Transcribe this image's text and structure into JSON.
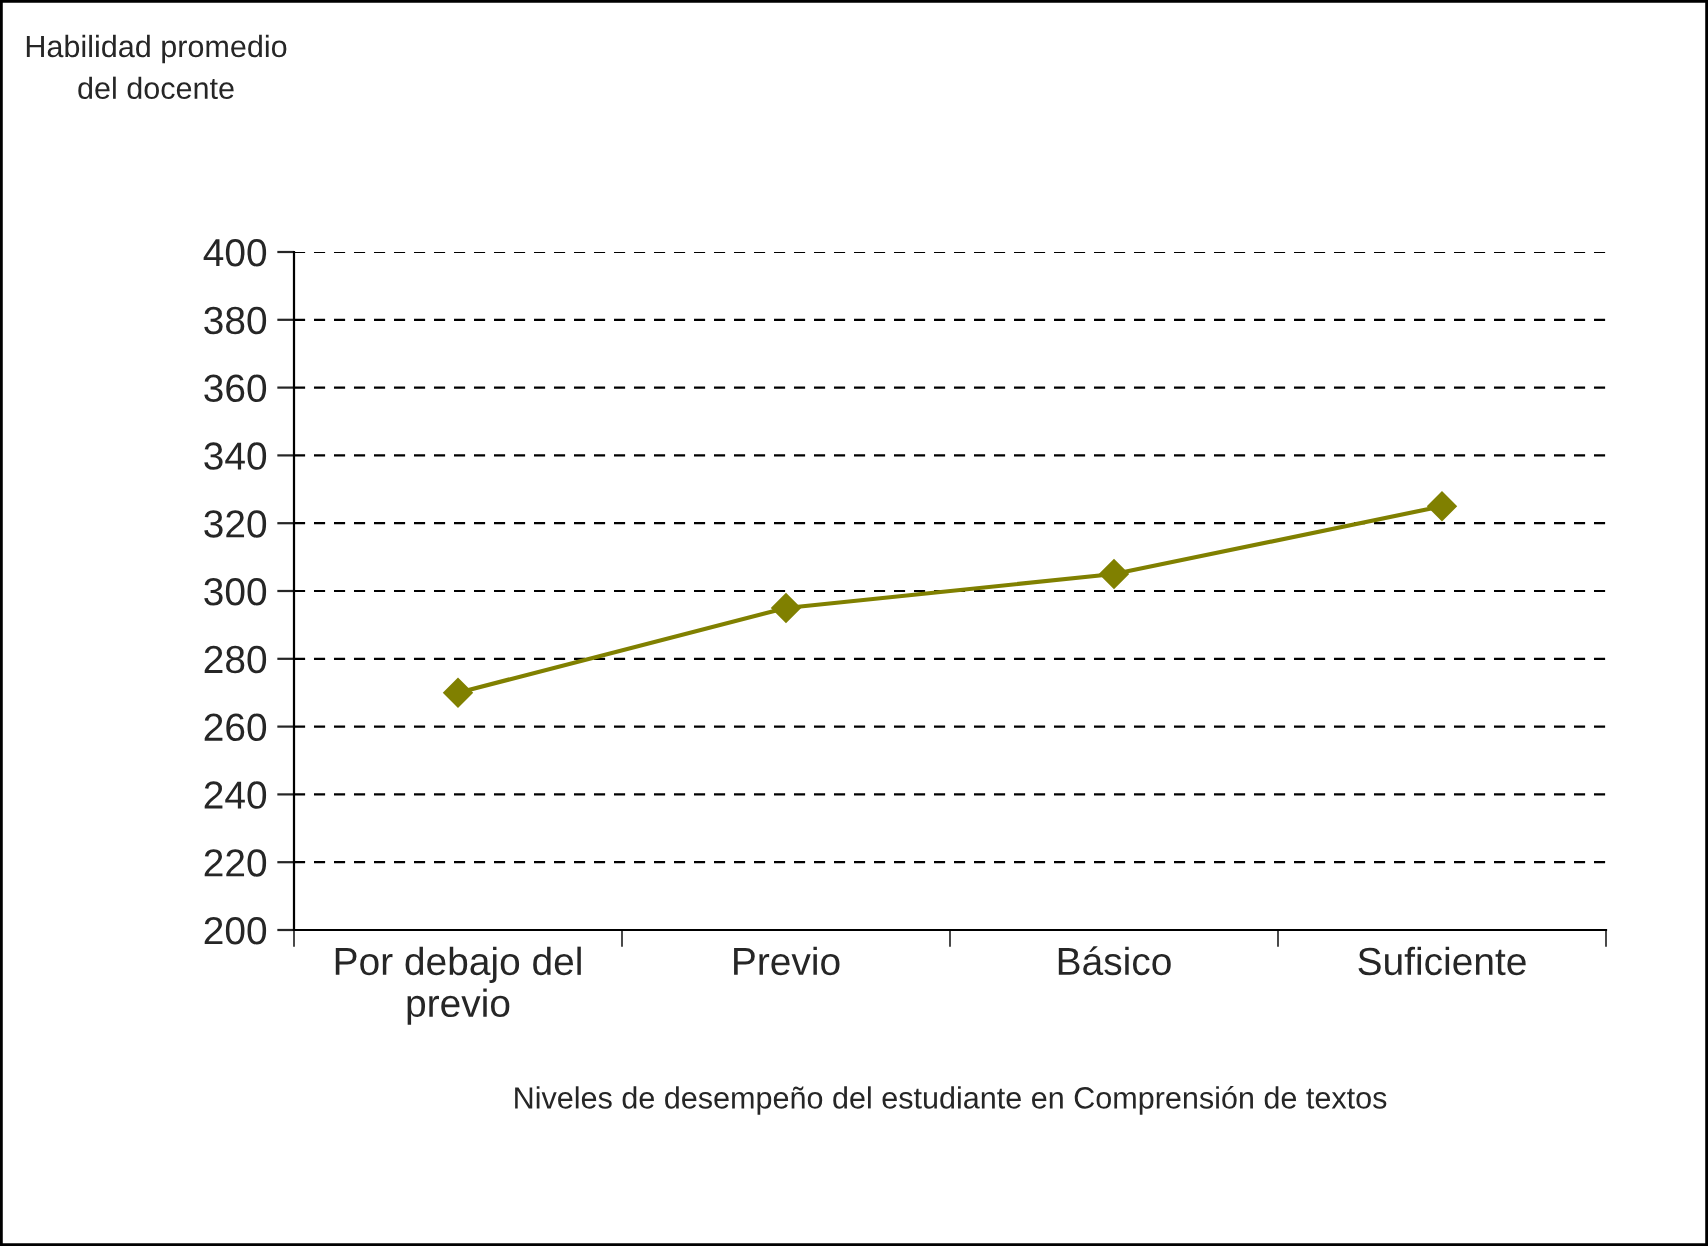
{
  "chart_data": {
    "type": "line",
    "ylabel": "Habilidad promedio\ndel docente",
    "xlabel": "Niveles de desempeño del estudiante en Comprensión de textos",
    "categories": [
      "Por debajo del\nprevio",
      "Previo",
      "Básico",
      "Suficiente"
    ],
    "series": [
      {
        "color": "#808000",
        "values": [
          270,
          295,
          305,
          325
        ]
      }
    ],
    "ylim": [
      200,
      400
    ],
    "yticks": [
      200,
      220,
      240,
      260,
      280,
      300,
      320,
      340,
      360,
      380,
      400
    ],
    "grid": "y",
    "marker": "diamond",
    "line_style": "solid",
    "legend": false
  }
}
